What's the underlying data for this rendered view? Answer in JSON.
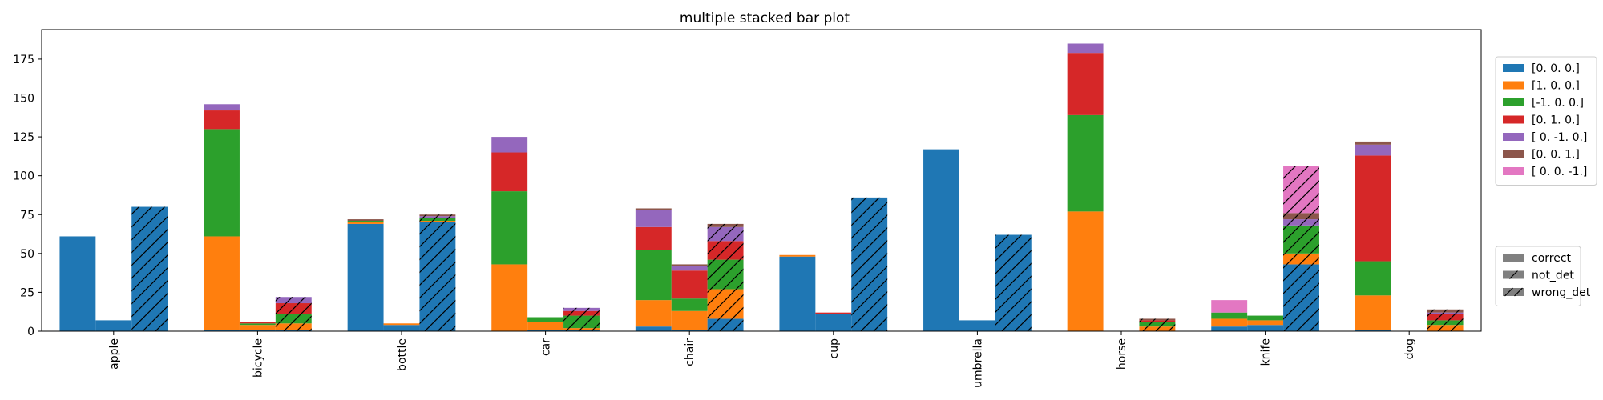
{
  "chart_data": {
    "type": "bar",
    "title": "multiple stacked bar plot",
    "xlabel": "",
    "ylabel": "",
    "ylim": [
      0,
      194
    ],
    "yticks": [
      0,
      25,
      50,
      75,
      100,
      125,
      150,
      175
    ],
    "grid": false,
    "categories": [
      "apple",
      "bicycle",
      "bottle",
      "car",
      "chair",
      "cup",
      "umbrella",
      "horse",
      "knife",
      "dog"
    ],
    "group_types": [
      "correct",
      "not_det",
      "wrong_det"
    ],
    "series": [
      {
        "name": "[0. 0. 0.]",
        "color": "#1f77b4"
      },
      {
        "name": "[1. 0. 0.]",
        "color": "#ff7f0e"
      },
      {
        "name": "[-1.  0.  0.]",
        "color": "#2ca02c"
      },
      {
        "name": "[0. 1. 0.]",
        "color": "#d62728"
      },
      {
        "name": "[ 0. -1.  0.]",
        "color": "#9467bd"
      },
      {
        "name": "[0. 0. 1.]",
        "color": "#8c564b"
      },
      {
        "name": "[ 0.  0. -1.]",
        "color": "#e377c2"
      }
    ],
    "values": {
      "correct": [
        [
          61,
          0,
          0,
          0,
          0,
          0,
          0
        ],
        [
          1,
          60,
          69,
          12,
          4,
          0,
          0
        ],
        [
          69,
          1,
          1,
          0,
          0,
          1,
          0
        ],
        [
          0,
          43,
          47,
          25,
          10,
          0,
          0
        ],
        [
          3,
          17,
          32,
          15,
          11,
          1,
          0
        ],
        [
          48,
          1,
          0,
          0,
          0,
          0,
          0
        ],
        [
          117,
          0,
          0,
          0,
          0,
          0,
          0
        ],
        [
          0,
          77,
          62,
          40,
          6,
          0,
          0
        ],
        [
          3,
          5,
          4,
          0,
          0,
          0,
          8
        ],
        [
          1,
          22,
          22,
          68,
          7,
          2,
          0
        ]
      ],
      "not_det": [
        [
          7,
          0,
          0,
          0,
          0,
          0,
          0
        ],
        [
          1,
          3,
          1,
          1,
          0,
          0,
          0
        ],
        [
          4,
          1,
          0,
          0,
          0,
          0,
          0
        ],
        [
          1,
          5,
          3,
          0,
          0,
          0,
          0
        ],
        [
          1,
          12,
          8,
          18,
          3,
          1,
          0
        ],
        [
          11,
          0,
          0,
          1,
          0,
          0,
          0
        ],
        [
          7,
          0,
          0,
          0,
          0,
          0,
          0
        ],
        [
          0,
          0,
          0,
          0,
          0,
          0,
          0
        ],
        [
          4,
          3,
          3,
          0,
          0,
          0,
          0
        ],
        [
          0,
          0,
          0,
          0,
          0,
          0,
          0
        ]
      ],
      "wrong_det": [
        [
          80,
          0,
          0,
          0,
          0,
          0,
          0
        ],
        [
          1,
          4,
          6,
          7,
          4,
          0,
          0
        ],
        [
          70,
          1,
          2,
          0,
          1,
          1,
          0
        ],
        [
          1,
          1,
          8,
          3,
          2,
          0,
          0
        ],
        [
          8,
          19,
          19,
          12,
          9,
          2,
          0
        ],
        [
          86,
          0,
          0,
          0,
          0,
          0,
          0
        ],
        [
          62,
          0,
          0,
          0,
          0,
          0,
          0
        ],
        [
          0,
          3,
          3,
          1,
          0,
          1,
          0
        ],
        [
          43,
          7,
          18,
          0,
          4,
          4,
          30
        ],
        [
          0,
          4,
          3,
          4,
          1,
          2,
          0
        ]
      ]
    }
  }
}
